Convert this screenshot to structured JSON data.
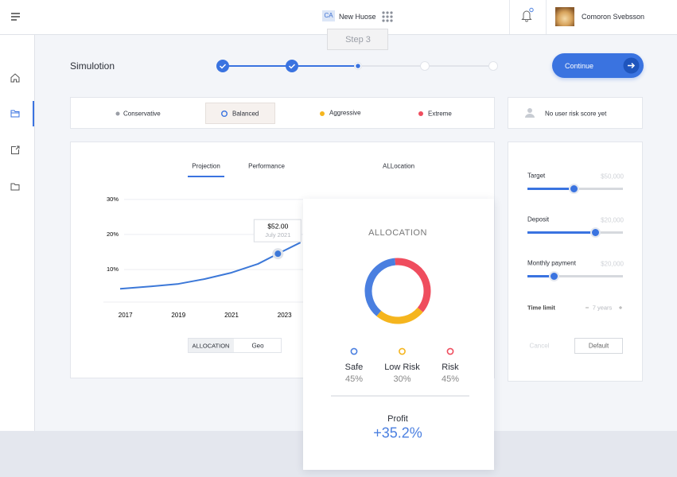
{
  "header": {
    "badge": "CA",
    "project": "New Huose",
    "user": "Comoron Svebsson"
  },
  "title": "Simulotion",
  "stepper": {
    "tooltip": "Step 3"
  },
  "continue": "Continue",
  "risk_options": [
    "Conservative",
    "Balanced",
    "Aggressive",
    "Extreme"
  ],
  "risk_score": "No user risk score yet",
  "tabs": [
    "Projection",
    "Performance",
    "ALLocation"
  ],
  "chart_buttons": [
    "ALLOCATION",
    "Geo"
  ],
  "chart_data": [
    {
      "type": "line",
      "x": [
        2016.8,
        2018,
        2019,
        2020,
        2021,
        2022,
        2022.75,
        2023.6
      ],
      "values": [
        4.5,
        5.2,
        5.9,
        7.3,
        9.1,
        11.6,
        14.5,
        17.7
      ],
      "color": "#3c78d8",
      "xlim": [
        2016.2,
        2024.6
      ],
      "xticks": [
        2017,
        2019,
        2021,
        2023
      ],
      "ylim": [
        0.7,
        32
      ],
      "yticks": [
        {
          "value": 10,
          "label": "10%"
        },
        {
          "value": 20,
          "label": "20%"
        },
        {
          "value": 30,
          "label": "30%"
        }
      ],
      "grid": true,
      "tooltip": [
        "$52.00",
        "July 2021"
      ]
    },
    {
      "type": "pie",
      "title": "ALLOCATION",
      "categories": [
        "Safe",
        "Low Risk",
        "Risk"
      ],
      "values": [
        45,
        30,
        45
      ],
      "value_labels": [
        "45%",
        "30%",
        "45%"
      ],
      "colors": [
        "#4a7fe0",
        "#f5b51e",
        "#ef4d5e"
      ]
    }
  ],
  "profit": {
    "label": "Profit",
    "value": "+35.2%"
  },
  "settings": {
    "fields": [
      {
        "label": "Target",
        "value": "$50,000"
      },
      {
        "label": "Deposit",
        "value": "$20,000"
      },
      {
        "label": "Monthly payment",
        "value": "$20,000"
      }
    ],
    "time_limit": {
      "label": "Time limit",
      "value": "7 years"
    },
    "cancel": "Cancel",
    "default": "Default"
  }
}
